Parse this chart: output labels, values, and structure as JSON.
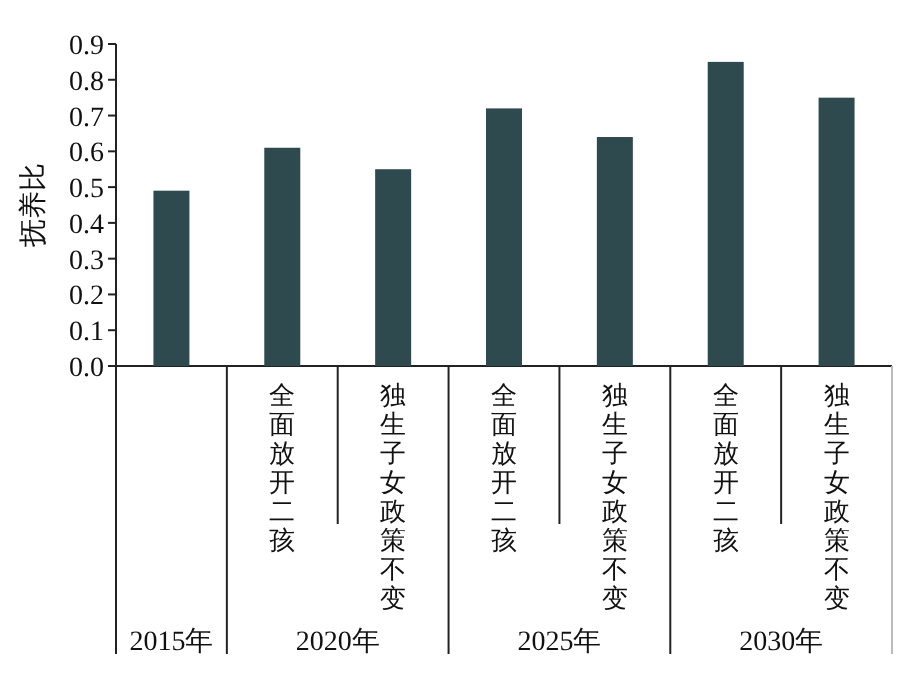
{
  "chart_data": {
    "type": "bar",
    "ylabel": "抚养比",
    "categories": [
      null,
      "全面放开二孩",
      "独生子女政策不变",
      "全面放开二孩",
      "独生子女政策不变",
      "全面放开二孩",
      "独生子女政策不变"
    ],
    "values": [
      0.49,
      0.61,
      0.55,
      0.72,
      0.64,
      0.85,
      0.75
    ],
    "color": "#2f4a4f",
    "ylim": [
      0,
      0.9
    ],
    "yticks": [
      {
        "value": 0,
        "label": "0.0"
      },
      {
        "value": 0.1,
        "label": "0.1"
      },
      {
        "value": 0.2,
        "label": "0.2"
      },
      {
        "value": 0.3,
        "label": "0.3"
      },
      {
        "value": 0.4,
        "label": "0.4"
      },
      {
        "value": 0.5,
        "label": "0.5"
      },
      {
        "value": 0.6,
        "label": "0.6"
      },
      {
        "value": 0.7,
        "label": "0.7"
      },
      {
        "value": 0.8,
        "label": "0.8"
      },
      {
        "value": 0.9,
        "label": "0.9"
      }
    ],
    "annotations": [
      "2015年",
      "2020年",
      "2025年",
      "2030年"
    ],
    "grid": false
  }
}
